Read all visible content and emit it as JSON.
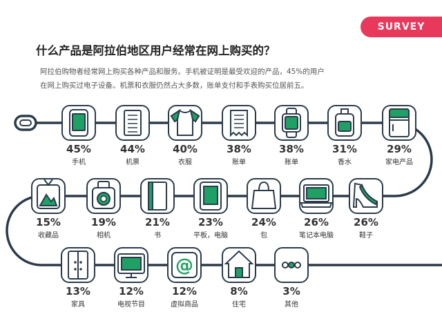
{
  "header": {
    "logo": "SURVEY",
    "title": "什么产品是阿拉伯地区用户经常在网上购买的？",
    "intro_line1": "阿拉伯购物者经常网上购买各种产品和服务。手机被证明是最受欢迎的产品，45%的用户",
    "intro_line2": "在网上购买过电子设备。机票和衣服仍然占大多数，账单支付和手表购买位居前五。"
  },
  "colors": {
    "accent": "#1fa064",
    "line": "#2b3a4a",
    "brand": "#e8385c",
    "icon_bg": "#ffffff",
    "icon_stroke": "#2b3a4a"
  },
  "chart_data": {
    "type": "table",
    "title": "什么产品是阿拉伯地区用户经常在网上购买的？",
    "unit": "%",
    "categories": [
      "手机",
      "机票",
      "衣服",
      "账单",
      "账单",
      "香水",
      "家电产品",
      "鞋子",
      "笔记本电脑",
      "包",
      "平板，电脑",
      "书",
      "相机",
      "收藏品",
      "家具",
      "电视节目",
      "虚拟商品",
      "住宅",
      "其他"
    ],
    "values": [
      45,
      44,
      40,
      38,
      38,
      31,
      29,
      26,
      26,
      24,
      23,
      21,
      19,
      15,
      13,
      12,
      12,
      8,
      3
    ],
    "labels": [
      "45%",
      "44%",
      "40%",
      "38%",
      "38%",
      "31%",
      "29%",
      "26%",
      "26%",
      "24%",
      "23%",
      "21%",
      "19%",
      "15%",
      "13%",
      "12%",
      "12%",
      "8%",
      "3%"
    ],
    "icons": [
      "phone-icon",
      "ticket-icon",
      "shirt-icon",
      "bill-icon",
      "watch-icon",
      "perfume-icon",
      "fridge-icon",
      "shoe-icon",
      "laptop-icon",
      "bag-icon",
      "tablet-icon",
      "book-icon",
      "camera-icon",
      "picture-icon",
      "cabinet-icon",
      "tv-icon",
      "at-icon",
      "house-icon",
      "dots-icon"
    ]
  }
}
